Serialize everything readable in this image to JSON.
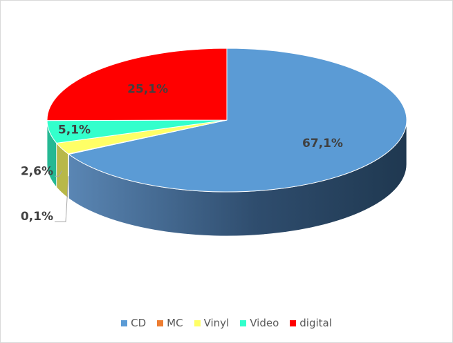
{
  "chart_data": {
    "type": "pie",
    "title": "",
    "categories": [
      "CD",
      "MC",
      "Vinyl",
      "Video",
      "digital"
    ],
    "values": [
      67.1,
      0.1,
      2.6,
      5.1,
      25.1
    ],
    "labels": [
      "67,1%",
      "0,1%",
      "2,6%",
      "5,1%",
      "25,1%"
    ],
    "colors": [
      "#5b9bd5",
      "#ed7d31",
      "#ffff66",
      "#33ffcc",
      "#ff0000"
    ],
    "legend_position": "bottom",
    "style": "3d-pie"
  }
}
